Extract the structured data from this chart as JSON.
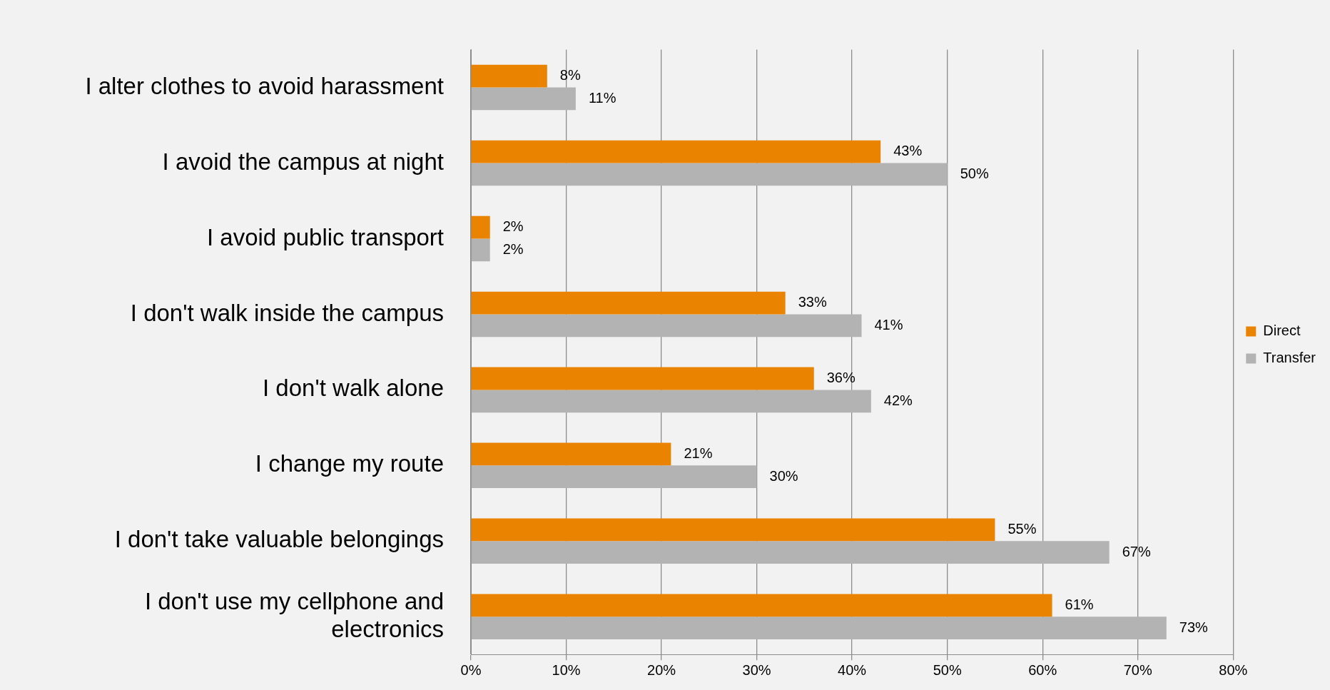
{
  "chart_data": {
    "type": "bar",
    "orientation": "horizontal",
    "categories": [
      "I alter clothes to avoid harassment",
      "I avoid the campus at night",
      "I avoid public transport",
      "I don't walk inside the campus",
      "I don't walk alone",
      "I change my route",
      "I don't take valuable belongings",
      "I don't use my cellphone and electronics"
    ],
    "series": [
      {
        "name": "Direct",
        "color": "#e98300",
        "values": [
          8,
          43,
          2,
          33,
          36,
          21,
          55,
          61
        ],
        "value_labels": [
          "8%",
          "43%",
          "2%",
          "33%",
          "36%",
          "21%",
          "55%",
          "61%"
        ]
      },
      {
        "name": "Transfer",
        "color": "#b3b3b3",
        "values": [
          11,
          50,
          2,
          41,
          42,
          30,
          67,
          73
        ],
        "value_labels": [
          "11%",
          "50%",
          "2%",
          "41%",
          "42%",
          "30%",
          "67%",
          "73%"
        ]
      }
    ],
    "xlim": [
      0,
      80
    ],
    "xticks": [
      {
        "value": 0,
        "label": "0%"
      },
      {
        "value": 10,
        "label": "10%"
      },
      {
        "value": 20,
        "label": "20%"
      },
      {
        "value": 30,
        "label": "30%"
      },
      {
        "value": 40,
        "label": "40%"
      },
      {
        "value": 50,
        "label": "50%"
      },
      {
        "value": 60,
        "label": "60%"
      },
      {
        "value": 70,
        "label": "70%"
      },
      {
        "value": 80,
        "label": "80%"
      }
    ],
    "grid": "x",
    "legend": "right"
  }
}
